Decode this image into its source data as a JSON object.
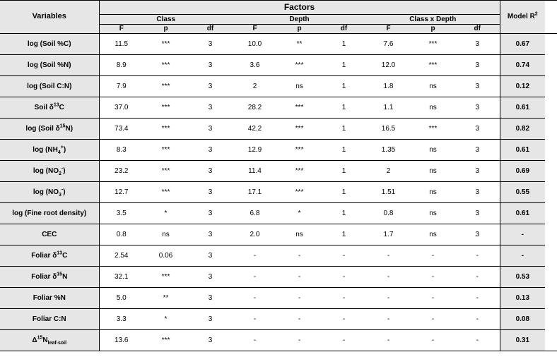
{
  "header": {
    "variables": "Variables",
    "factors": "Factors",
    "groups": [
      "Class",
      "Depth",
      "Class x Depth"
    ],
    "sub": [
      "F",
      "p",
      "df"
    ],
    "modelR2": "Model R<sup>2</sup>"
  },
  "rows": [
    {
      "var": "log (Soil %C)",
      "c": [
        "11.5",
        "***",
        "3"
      ],
      "d": [
        "10.0",
        "**",
        "1"
      ],
      "x": [
        "7.6",
        "***",
        "3"
      ],
      "r2": "0.67"
    },
    {
      "var": "log (Soil %N)",
      "c": [
        "8.9",
        "***",
        "3"
      ],
      "d": [
        "3.6",
        "***",
        "1"
      ],
      "x": [
        "12.0",
        "***",
        "3"
      ],
      "r2": "0.74"
    },
    {
      "var": "log (Soil C:N)",
      "c": [
        "7.9",
        "***",
        "3"
      ],
      "d": [
        "2",
        "ns",
        "1"
      ],
      "x": [
        "1.8",
        "ns",
        "3"
      ],
      "r2": "0.12"
    },
    {
      "var": "Soil δ<sup>13</sup>C",
      "c": [
        "37.0",
        "***",
        "3"
      ],
      "d": [
        "28.2",
        "***",
        "1"
      ],
      "x": [
        "1.1",
        "ns",
        "3"
      ],
      "r2": "0.61"
    },
    {
      "var": "log (Soil δ<sup>15</sup>N)",
      "c": [
        "73.4",
        "***",
        "3"
      ],
      "d": [
        "42.2",
        "***",
        "1"
      ],
      "x": [
        "16.5",
        "***",
        "3"
      ],
      "r2": "0.82"
    },
    {
      "var": "log (NH<sub>4</sub><sup>+</sup>)",
      "c": [
        "8.3",
        "***",
        "3"
      ],
      "d": [
        "12.9",
        "***",
        "1"
      ],
      "x": [
        "1.35",
        "ns",
        "3"
      ],
      "r2": "0.61"
    },
    {
      "var": "log (NO<sub>2</sub><sup>-</sup>)",
      "c": [
        "23.2",
        "***",
        "3"
      ],
      "d": [
        "11.4",
        "***",
        "1"
      ],
      "x": [
        "2",
        "ns",
        "3"
      ],
      "r2": "0.69"
    },
    {
      "var": "log (NO<sub>3</sub><sup>-</sup>)",
      "c": [
        "12.7",
        "***",
        "3"
      ],
      "d": [
        "17.1",
        "***",
        "1"
      ],
      "x": [
        "1.51",
        "ns",
        "3"
      ],
      "r2": "0.55"
    },
    {
      "var": "log (Fine root density)",
      "c": [
        "3.5",
        "*",
        "3"
      ],
      "d": [
        "6.8",
        "*",
        "1"
      ],
      "x": [
        "0.8",
        "ns",
        "3"
      ],
      "r2": "0.61"
    },
    {
      "var": "CEC",
      "c": [
        "0.8",
        "ns",
        "3"
      ],
      "d": [
        "2.0",
        "ns",
        "1"
      ],
      "x": [
        "1.7",
        "ns",
        "3"
      ],
      "r2": "-"
    },
    {
      "var": "Foliar δ<sup>13</sup>C",
      "c": [
        "2.54",
        "0.06",
        "3"
      ],
      "d": [
        "-",
        "-",
        "-"
      ],
      "x": [
        "-",
        "-",
        "-"
      ],
      "r2": "-"
    },
    {
      "var": "Foliar δ<sup>15</sup>N",
      "c": [
        "32.1",
        "***",
        "3"
      ],
      "d": [
        "-",
        "-",
        "-"
      ],
      "x": [
        "-",
        "-",
        "-"
      ],
      "r2": "0.53"
    },
    {
      "var": "Foliar %N",
      "c": [
        "5.0",
        "**",
        "3"
      ],
      "d": [
        "-",
        "-",
        "-"
      ],
      "x": [
        "-",
        "-",
        "-"
      ],
      "r2": "0.13"
    },
    {
      "var": "Foliar C:N",
      "c": [
        "3.3",
        "*",
        "3"
      ],
      "d": [
        "-",
        "-",
        "-"
      ],
      "x": [
        "-",
        "-",
        "-"
      ],
      "r2": "0.08"
    },
    {
      "var": "Δ<sup>15</sup>N<sub>leaf-soil</sub>",
      "c": [
        "13.6",
        "***",
        "3"
      ],
      "d": [
        "-",
        "-",
        "-"
      ],
      "x": [
        "-",
        "-",
        "-"
      ],
      "r2": "0.31"
    }
  ],
  "colw": {
    "var": 140,
    "cell": 62,
    "r2": 64
  },
  "colors": {
    "shade": "#e6e6e6",
    "line": "#000000",
    "bg": "#ffffff"
  }
}
